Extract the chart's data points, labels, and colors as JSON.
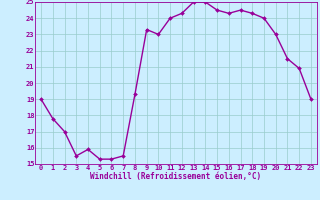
{
  "x": [
    0,
    1,
    2,
    3,
    4,
    5,
    6,
    7,
    8,
    9,
    10,
    11,
    12,
    13,
    14,
    15,
    16,
    17,
    18,
    19,
    20,
    21,
    22,
    23
  ],
  "y": [
    19.0,
    17.8,
    17.0,
    15.5,
    15.9,
    15.3,
    15.3,
    15.5,
    19.3,
    23.3,
    23.0,
    24.0,
    24.3,
    25.0,
    25.0,
    24.5,
    24.3,
    24.5,
    24.3,
    24.0,
    23.0,
    21.5,
    20.9,
    19.0
  ],
  "line_color": "#990099",
  "marker_color": "#990099",
  "bg_color": "#cceeff",
  "grid_color": "#99cccc",
  "xlabel": "Windchill (Refroidissement éolien,°C)",
  "xlabel_color": "#990099",
  "tick_color": "#990099",
  "ylim": [
    15,
    25
  ],
  "xlim_min": -0.5,
  "xlim_max": 23.5,
  "yticks": [
    15,
    16,
    17,
    18,
    19,
    20,
    21,
    22,
    23,
    24,
    25
  ],
  "xticks": [
    0,
    1,
    2,
    3,
    4,
    5,
    6,
    7,
    8,
    9,
    10,
    11,
    12,
    13,
    14,
    15,
    16,
    17,
    18,
    19,
    20,
    21,
    22,
    23
  ],
  "marker_size": 2.0,
  "line_width": 1.0,
  "tick_fontsize": 5.0,
  "xlabel_fontsize": 5.5
}
